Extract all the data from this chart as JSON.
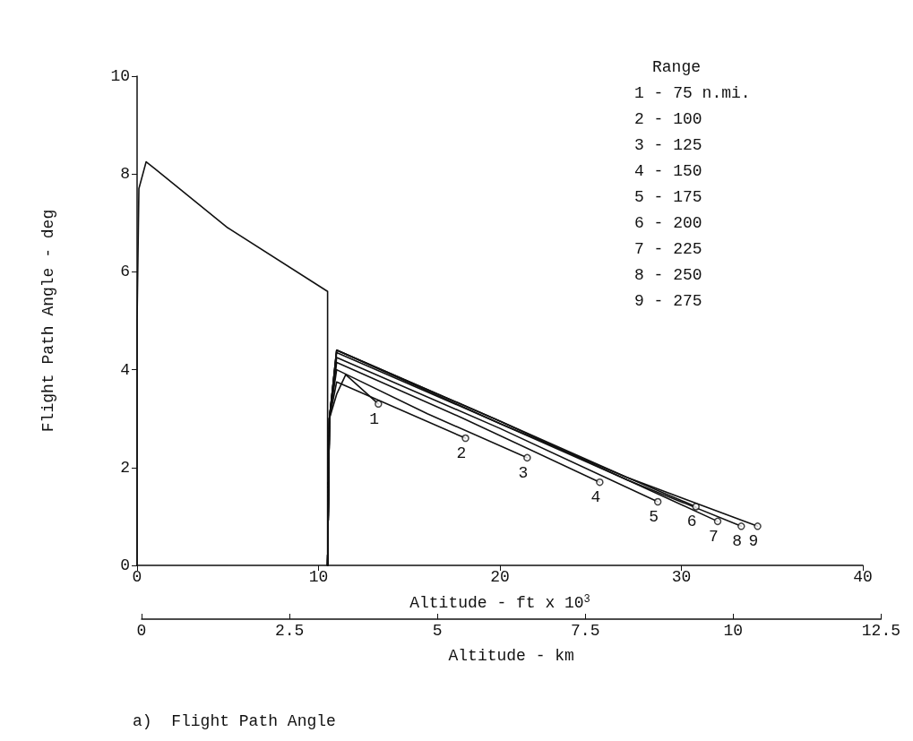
{
  "chart_data": {
    "type": "line",
    "title": "a)  Flight Path Angle",
    "xlabel": "Altitude - ft x 10$^{3}$",
    "x2label": "Altitude - km",
    "ylabel": "Flight Path Angle - deg",
    "xlim": [
      0,
      40
    ],
    "xticks": [
      0,
      10,
      20,
      30,
      40
    ],
    "x2lim": [
      0,
      12.5
    ],
    "x2ticks": [
      0,
      2.5,
      5,
      7.5,
      10,
      12.5
    ],
    "ylim": [
      0,
      10
    ],
    "yticks": [
      0,
      2,
      4,
      6,
      8,
      10
    ],
    "grid": false,
    "line_style": "solid",
    "series": [
      {
        "color": "#111111",
        "marker": "none",
        "x": [
          0,
          0,
          0.1,
          0.5,
          1,
          5,
          10.5,
          10.5
        ],
        "values": [
          0,
          5,
          7.7,
          8.25,
          8.1,
          6.9,
          5.6,
          0
        ]
      },
      {
        "type": "scatter",
        "color": "#111111",
        "marker": "circle",
        "x": [
          13.3,
          18.1,
          21.5,
          25.5,
          28.7,
          30.8,
          32,
          33.3,
          34.2
        ],
        "values": [
          3.3,
          2.6,
          2.2,
          1.7,
          1.3,
          1.2,
          0.9,
          0.8,
          0.8
        ]
      },
      {
        "color": "#111111",
        "marker": "none",
        "x": [
          10.5,
          10.6,
          11,
          11.5,
          13.3
        ],
        "values": [
          0,
          3,
          3.5,
          3.9,
          3.3
        ]
      },
      {
        "color": "#111111",
        "marker": "none",
        "x": [
          10.5,
          10.6,
          11,
          18.1
        ],
        "values": [
          0,
          3,
          3.75,
          2.6
        ]
      },
      {
        "color": "#111111",
        "marker": "none",
        "x": [
          10.5,
          10.6,
          11,
          16,
          21.5
        ],
        "values": [
          0,
          3,
          4.0,
          3.1,
          2.2
        ]
      },
      {
        "color": "#111111",
        "marker": "none",
        "x": [
          10.5,
          10.6,
          11,
          18,
          25.5
        ],
        "values": [
          0,
          3,
          4.15,
          3.0,
          1.7
        ]
      },
      {
        "color": "#111111",
        "marker": "none",
        "x": [
          10.5,
          10.6,
          11,
          20,
          28.7
        ],
        "values": [
          0,
          3,
          4.25,
          2.8,
          1.3
        ]
      },
      {
        "color": "#111111",
        "marker": "none",
        "x": [
          10.5,
          10.6,
          11,
          20,
          30.8
        ],
        "values": [
          0,
          3,
          4.35,
          2.9,
          1.2
        ]
      },
      {
        "color": "#111111",
        "marker": "none",
        "x": [
          10.5,
          10.6,
          11,
          20,
          27,
          32
        ],
        "values": [
          0,
          3,
          4.4,
          2.9,
          1.75,
          0.9
        ]
      },
      {
        "color": "#111111",
        "marker": "none",
        "x": [
          10.5,
          10.6,
          11,
          20,
          27,
          33.3
        ],
        "values": [
          0,
          3,
          4.4,
          2.95,
          1.75,
          0.8
        ]
      },
      {
        "color": "#111111",
        "marker": "none",
        "x": [
          10.5,
          10.6,
          11,
          20,
          27,
          34.2
        ],
        "values": [
          0,
          3,
          4.4,
          2.95,
          1.8,
          0.8
        ]
      }
    ],
    "annotations": [
      "Range",
      "1 - 75 n.mi.",
      "2 - 100",
      "3 - 125",
      "4 - 150",
      "5 - 175",
      "6 - 200",
      "7 - 225",
      "8 - 250",
      "9 - 275",
      {
        "text": "1",
        "x": 13.3,
        "y": 3.3
      },
      {
        "text": "2",
        "x": 18.1,
        "y": 2.6
      },
      {
        "text": "3",
        "x": 21.5,
        "y": 2.2
      },
      {
        "text": "4",
        "x": 25.5,
        "y": 1.7
      },
      {
        "text": "5",
        "x": 28.7,
        "y": 1.3
      },
      {
        "text": "6",
        "x": 30.8,
        "y": 1.2
      },
      {
        "text": "7",
        "x": 32,
        "y": 0.9
      },
      {
        "text": "8",
        "x": 33.3,
        "y": 0.8
      },
      {
        "text": "9",
        "x": 34.2,
        "y": 0.8
      }
    ]
  }
}
